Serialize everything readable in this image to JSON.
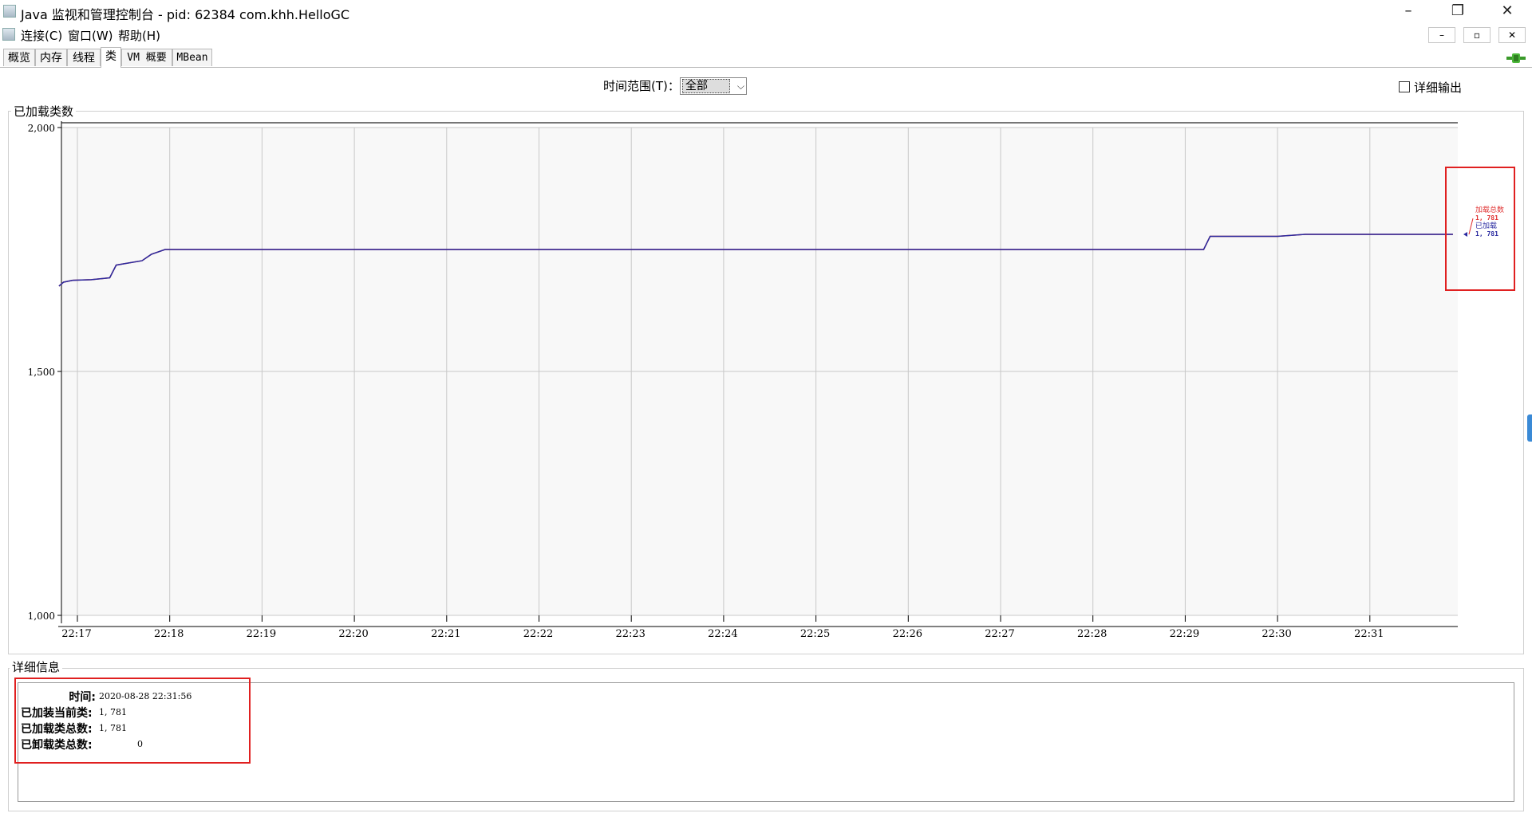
{
  "window": {
    "title": "Java 监视和管理控制台 - pid: 62384 com.khh.HelloGC",
    "minimize": "–",
    "restore": "❐",
    "close": "✕"
  },
  "menu": {
    "items": [
      "连接(C)",
      "窗口(W)",
      "帮助(H)"
    ],
    "mdi_min": "–",
    "mdi_restore": "▫",
    "mdi_close": "✕"
  },
  "tabs": [
    "概览",
    "内存",
    "线程",
    "类",
    "VM 概要",
    "MBean"
  ],
  "active_tab": 3,
  "toolbar": {
    "range_label": "时间范围(T)：",
    "range_value": "全部",
    "verbose_label": "详细输出"
  },
  "chart_panel": {
    "legend": "已加载类数"
  },
  "chart_data": {
    "type": "line",
    "ylim": [
      1000,
      2000
    ],
    "yticks": [
      1000,
      1500,
      2000
    ],
    "ytick_labels": [
      "1,000",
      "1,500",
      "2,000"
    ],
    "xtick_labels": [
      "22:17",
      "22:18",
      "22:19",
      "22:20",
      "22:21",
      "22:22",
      "22:23",
      "22:24",
      "22:25",
      "22:26",
      "22:27",
      "22:28",
      "22:29",
      "22:30",
      "22:31"
    ],
    "grid": true,
    "x_minutes": [
      -0.2,
      -0.15,
      -0.05,
      0.15,
      0.35,
      0.42,
      0.48,
      0.7,
      0.8,
      0.95,
      12.2,
      12.27,
      13.0,
      13.3,
      14.9
    ],
    "series": [
      {
        "name": "已加载",
        "color": "#2a2aa0",
        "values": [
          1675,
          1683,
          1687,
          1688,
          1692,
          1718,
          1720,
          1727,
          1740,
          1750,
          1750,
          1777,
          1777,
          1781,
          1781
        ]
      },
      {
        "name": "加载总数",
        "color": "#d03030",
        "values": [
          1675,
          1683,
          1687,
          1688,
          1692,
          1718,
          1720,
          1727,
          1740,
          1750,
          1750,
          1777,
          1777,
          1781,
          1781
        ]
      }
    ],
    "legend": [
      {
        "label": "加载总数",
        "value": "1, 781",
        "color": "#e03030"
      },
      {
        "label": "已加载",
        "value": "1, 781",
        "color": "#2a2aa0"
      }
    ]
  },
  "details": {
    "legend": "详细信息",
    "rows": [
      {
        "label": "时间:",
        "value": "2020-08-28 22:31:56"
      },
      {
        "label": "已加装当前类:",
        "value": "1, 781"
      },
      {
        "label": "已加载类总数:",
        "value": "1, 781"
      },
      {
        "label": "已卸载类总数:",
        "value": "0"
      }
    ]
  }
}
